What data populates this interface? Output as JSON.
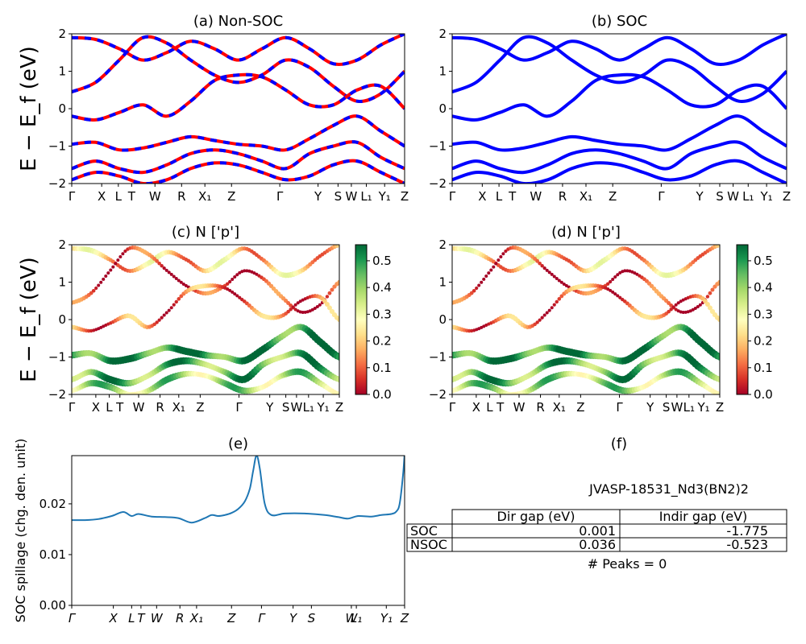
{
  "chart_data": [
    {
      "panel": "a",
      "type": "line",
      "title": "(a) Non-SOC",
      "ylabel": "E − E_f (eV)",
      "ylim": [
        -2,
        2
      ],
      "yticks": [
        "−2",
        "−1",
        "0",
        "1",
        "2"
      ],
      "xticks": [
        "Γ",
        "X",
        "L",
        "T",
        "W",
        "R",
        "X₁",
        "Z",
        "Γ",
        "Y",
        "S",
        "W",
        "L₁",
        "Y₁",
        "Z"
      ],
      "style": "red solid bands overlaid with blue dashed bands",
      "colors": {
        "solid": "#ff0000",
        "dashed": "#0000ff"
      },
      "bands": [
        [
          1.9,
          1.85,
          1.6,
          1.3,
          1.5,
          1.8,
          1.6,
          1.3,
          1.6,
          1.9,
          1.6,
          1.2,
          1.3,
          1.7,
          2.0
        ],
        [
          0.45,
          0.7,
          1.3,
          1.9,
          1.75,
          1.3,
          0.9,
          0.7,
          0.9,
          1.3,
          1.1,
          0.6,
          0.2,
          0.4,
          1.0
        ],
        [
          -0.2,
          -0.3,
          -0.1,
          0.1,
          -0.2,
          0.2,
          0.75,
          0.9,
          0.85,
          0.5,
          0.1,
          0.1,
          0.5,
          0.6,
          0.0
        ],
        [
          -0.95,
          -0.9,
          -1.1,
          -1.05,
          -0.9,
          -0.75,
          -0.85,
          -0.95,
          -1.0,
          -1.1,
          -0.8,
          -0.45,
          -0.2,
          -0.6,
          -1.0
        ],
        [
          -1.6,
          -1.4,
          -1.6,
          -1.7,
          -1.5,
          -1.2,
          -1.1,
          -1.2,
          -1.4,
          -1.6,
          -1.2,
          -1.0,
          -0.9,
          -1.3,
          -1.6
        ],
        [
          -1.9,
          -1.7,
          -1.8,
          -2.0,
          -1.9,
          -1.6,
          -1.45,
          -1.5,
          -1.7,
          -1.9,
          -1.8,
          -1.5,
          -1.4,
          -1.7,
          -2.0
        ]
      ]
    },
    {
      "panel": "b",
      "type": "line",
      "title": "(b) SOC",
      "ylim": [
        -2,
        2
      ],
      "yticks": [
        "−2",
        "−1",
        "0",
        "1",
        "2"
      ],
      "xticks": [
        "Γ",
        "X",
        "L",
        "T",
        "W",
        "R",
        "X₁",
        "Z",
        "Γ",
        "Y",
        "S",
        "W",
        "L₁",
        "Y₁",
        "Z"
      ],
      "colors": {
        "solid": "#0000ff"
      },
      "bands": [
        [
          1.9,
          1.85,
          1.6,
          1.3,
          1.5,
          1.8,
          1.6,
          1.3,
          1.6,
          1.9,
          1.6,
          1.2,
          1.3,
          1.7,
          2.0
        ],
        [
          0.45,
          0.7,
          1.3,
          1.9,
          1.75,
          1.3,
          0.9,
          0.7,
          0.9,
          1.3,
          1.1,
          0.6,
          0.2,
          0.4,
          1.0
        ],
        [
          -0.2,
          -0.3,
          -0.1,
          0.1,
          -0.2,
          0.2,
          0.75,
          0.9,
          0.85,
          0.5,
          0.1,
          0.1,
          0.5,
          0.6,
          0.0
        ],
        [
          -0.95,
          -0.9,
          -1.1,
          -1.05,
          -0.9,
          -0.75,
          -0.85,
          -0.95,
          -1.0,
          -1.1,
          -0.8,
          -0.45,
          -0.2,
          -0.6,
          -1.0
        ],
        [
          -1.6,
          -1.4,
          -1.6,
          -1.7,
          -1.5,
          -1.2,
          -1.1,
          -1.2,
          -1.4,
          -1.6,
          -1.2,
          -1.0,
          -0.9,
          -1.3,
          -1.6
        ],
        [
          -1.9,
          -1.7,
          -1.8,
          -2.0,
          -1.9,
          -1.6,
          -1.45,
          -1.5,
          -1.7,
          -1.9,
          -1.8,
          -1.5,
          -1.4,
          -1.7,
          -2.0
        ]
      ]
    },
    {
      "panel": "c",
      "type": "scatter",
      "title": "(c)  N ['p']",
      "ylabel": "E − E_f (eV)",
      "ylim": [
        -2,
        2
      ],
      "yticks": [
        "−2",
        "−1",
        "0",
        "1",
        "2"
      ],
      "xticks": [
        "Γ",
        "X",
        "L",
        "T",
        "W",
        "R",
        "X₁",
        "Z",
        "Γ",
        "Y",
        "S",
        "W",
        "L₁",
        "Y₁",
        "Z"
      ],
      "colorbar": {
        "colormap": "RdYlGn",
        "ticks": [
          "0.0",
          "0.1",
          "0.2",
          "0.3",
          "0.4",
          "0.5"
        ],
        "min": 0.0,
        "max": 0.56
      },
      "band_weights": [
        0.2,
        0.05,
        0.12,
        0.5,
        0.45,
        0.38
      ]
    },
    {
      "panel": "d",
      "type": "scatter",
      "title": "(d) N ['p']",
      "ylim": [
        -2,
        2
      ],
      "yticks": [
        "−2",
        "−1",
        "0",
        "1",
        "2"
      ],
      "xticks": [
        "Γ",
        "X",
        "L",
        "T",
        "W",
        "R",
        "X₁",
        "Z",
        "Γ",
        "Y",
        "S",
        "W",
        "L₁",
        "Y₁",
        "Z"
      ],
      "colorbar": {
        "colormap": "RdYlGn",
        "ticks": [
          "0.0",
          "0.1",
          "0.2",
          "0.3",
          "0.4",
          "0.5"
        ],
        "min": 0.0,
        "max": 0.56
      },
      "band_weights": [
        0.2,
        0.05,
        0.12,
        0.5,
        0.45,
        0.38
      ]
    },
    {
      "panel": "e",
      "type": "line",
      "title": "(e)",
      "ylabel": "SOC spillage (chg. den. unit)",
      "ylim": [
        0.0,
        0.03
      ],
      "yticks": [
        "0.00",
        "0.01",
        "0.02"
      ],
      "xticks": [
        "Γ",
        "X",
        "L",
        "T",
        "W",
        "R",
        "X₁",
        "Z",
        "Γ",
        "Y",
        "S",
        "W",
        "L₁",
        "Y₁",
        "Z"
      ],
      "color": "#1f77b4",
      "x": [
        0,
        0.04,
        0.08,
        0.12,
        0.155,
        0.18,
        0.2,
        0.24,
        0.28,
        0.32,
        0.36,
        0.4,
        0.42,
        0.44,
        0.46,
        0.48,
        0.5,
        0.52,
        0.535,
        0.545,
        0.555,
        0.565,
        0.58,
        0.6,
        0.64,
        0.7,
        0.76,
        0.8,
        0.83,
        0.86,
        0.9,
        0.93,
        0.96,
        0.975,
        0.985,
        0.995,
        1.0
      ],
      "values": [
        0.0168,
        0.0168,
        0.017,
        0.0176,
        0.0184,
        0.0176,
        0.018,
        0.0175,
        0.0174,
        0.0172,
        0.0163,
        0.0172,
        0.0178,
        0.0176,
        0.0178,
        0.0182,
        0.019,
        0.0205,
        0.023,
        0.0265,
        0.0295,
        0.027,
        0.02,
        0.0178,
        0.0181,
        0.0181,
        0.0178,
        0.0174,
        0.0171,
        0.0176,
        0.0175,
        0.0178,
        0.018,
        0.0185,
        0.02,
        0.0255,
        0.03
      ]
    },
    {
      "panel": "f",
      "type": "table",
      "title": "(f)",
      "caption": "JVASP-18531_Nd3(BN2)2",
      "columns": [
        "Dir gap (eV)",
        "Indir gap (eV)"
      ],
      "rows": [
        {
          "label": "SOC",
          "values": [
            "0.001",
            "-1.775"
          ]
        },
        {
          "label": "NSOC",
          "values": [
            "0.036",
            "-0.523"
          ]
        }
      ],
      "footer": "# Peaks = 0"
    }
  ]
}
